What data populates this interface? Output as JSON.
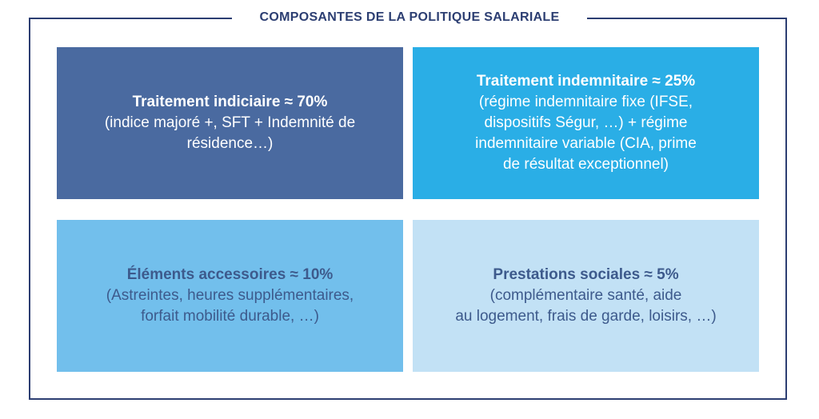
{
  "title": "COMPOSANTES DE LA POLITIQUE SALARIALE",
  "boxes": [
    {
      "heading": "Traitement indiciaire ≈ 70%",
      "body": "(indice majoré +, SFT + Indemnité de\nrésidence…)",
      "background": "#4a6aa0",
      "text_color": "#ffffff"
    },
    {
      "heading": "Traitement indemnitaire ≈ 25%",
      "body": "(régime indemnitaire fixe (IFSE,\ndispositifs Ségur, …) + régime\nindemnitaire variable (CIA, prime\nde résultat exceptionnel)",
      "background": "#2aaee6",
      "text_color": "#ffffff"
    },
    {
      "heading": "Éléments accessoires ≈ 10%",
      "body": "(Astreintes, heures supplémentaires,\nforfait mobilité durable, …)",
      "background": "#72bfec",
      "text_color": "#3d5a8c"
    },
    {
      "heading": "Prestations sociales ≈ 5%",
      "body": "(complémentaire santé, aide\nau logement, frais de garde, loisirs, …)",
      "background": "#c2e1f5",
      "text_color": "#3d5a8c"
    }
  ]
}
